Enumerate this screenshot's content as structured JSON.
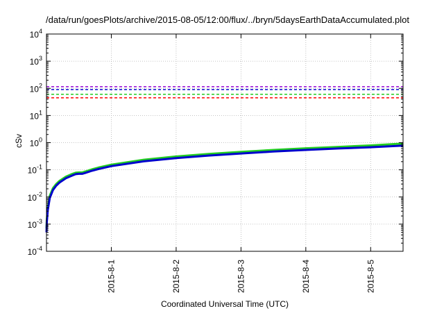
{
  "chart_data": {
    "type": "line",
    "title": "/data/run/goesPlots/archive/2015-08-05/12:00/flux/../bryn/5daysEarthDataAccumulated.plot",
    "xlabel": "Coordinated Universal Time (UTC)",
    "ylabel": "cSv",
    "x_unit": "days",
    "xlim": [
      0,
      5.5
    ],
    "ylim": [
      0.0001,
      10000
    ],
    "yscale": "log",
    "grid": true,
    "x_ticks": [
      {
        "value": 1,
        "label": "2015-8-1"
      },
      {
        "value": 2,
        "label": "2015-8-2"
      },
      {
        "value": 3,
        "label": "2015-8-3"
      },
      {
        "value": 4,
        "label": "2015-8-4"
      },
      {
        "value": 5,
        "label": "2015-8-5"
      }
    ],
    "y_ticks": [
      {
        "value": 0.0001,
        "base": "10",
        "exp": "-4"
      },
      {
        "value": 0.001,
        "base": "10",
        "exp": "-3"
      },
      {
        "value": 0.01,
        "base": "10",
        "exp": "-2"
      },
      {
        "value": 0.1,
        "base": "10",
        "exp": "-1"
      },
      {
        "value": 1,
        "base": "10",
        "exp": "0"
      },
      {
        "value": 10,
        "base": "10",
        "exp": "1"
      },
      {
        "value": 100,
        "base": "10",
        "exp": "2"
      },
      {
        "value": 1000,
        "base": "10",
        "exp": "3"
      },
      {
        "value": 10000,
        "base": "10",
        "exp": "4"
      }
    ],
    "thresholds": [
      {
        "value": 115,
        "color": "#9400d3"
      },
      {
        "value": 90,
        "color": "#0000cd"
      },
      {
        "value": 60,
        "color": "#22cc22"
      },
      {
        "value": 45,
        "color": "#ff0000"
      }
    ],
    "series": [
      {
        "color": "#22cc22",
        "x": [
          0,
          0.005,
          0.02,
          0.05,
          0.1,
          0.15,
          0.2,
          0.3,
          0.4,
          0.45,
          0.5,
          0.55,
          0.6,
          0.7,
          0.8,
          1.0,
          1.5,
          2.0,
          2.5,
          3.0,
          3.5,
          4.0,
          4.5,
          5.0,
          5.5
        ],
        "values": [
          0.0007,
          0.0015,
          0.004,
          0.011,
          0.021,
          0.03,
          0.039,
          0.056,
          0.071,
          0.078,
          0.08,
          0.08,
          0.087,
          0.104,
          0.121,
          0.155,
          0.235,
          0.31,
          0.385,
          0.46,
          0.54,
          0.62,
          0.7,
          0.79,
          0.93
        ]
      },
      {
        "color": "#0000cd",
        "x": [
          0,
          0.005,
          0.02,
          0.05,
          0.1,
          0.15,
          0.2,
          0.3,
          0.4,
          0.45,
          0.5,
          0.55,
          0.6,
          0.7,
          0.8,
          1.0,
          1.5,
          2.0,
          2.5,
          3.0,
          3.5,
          4.0,
          4.5,
          5.0,
          5.5
        ],
        "values": [
          0.0005,
          0.0012,
          0.0033,
          0.009,
          0.018,
          0.026,
          0.034,
          0.049,
          0.062,
          0.069,
          0.071,
          0.071,
          0.077,
          0.092,
          0.107,
          0.137,
          0.205,
          0.27,
          0.335,
          0.4,
          0.47,
          0.54,
          0.61,
          0.68,
          0.78
        ]
      }
    ]
  }
}
